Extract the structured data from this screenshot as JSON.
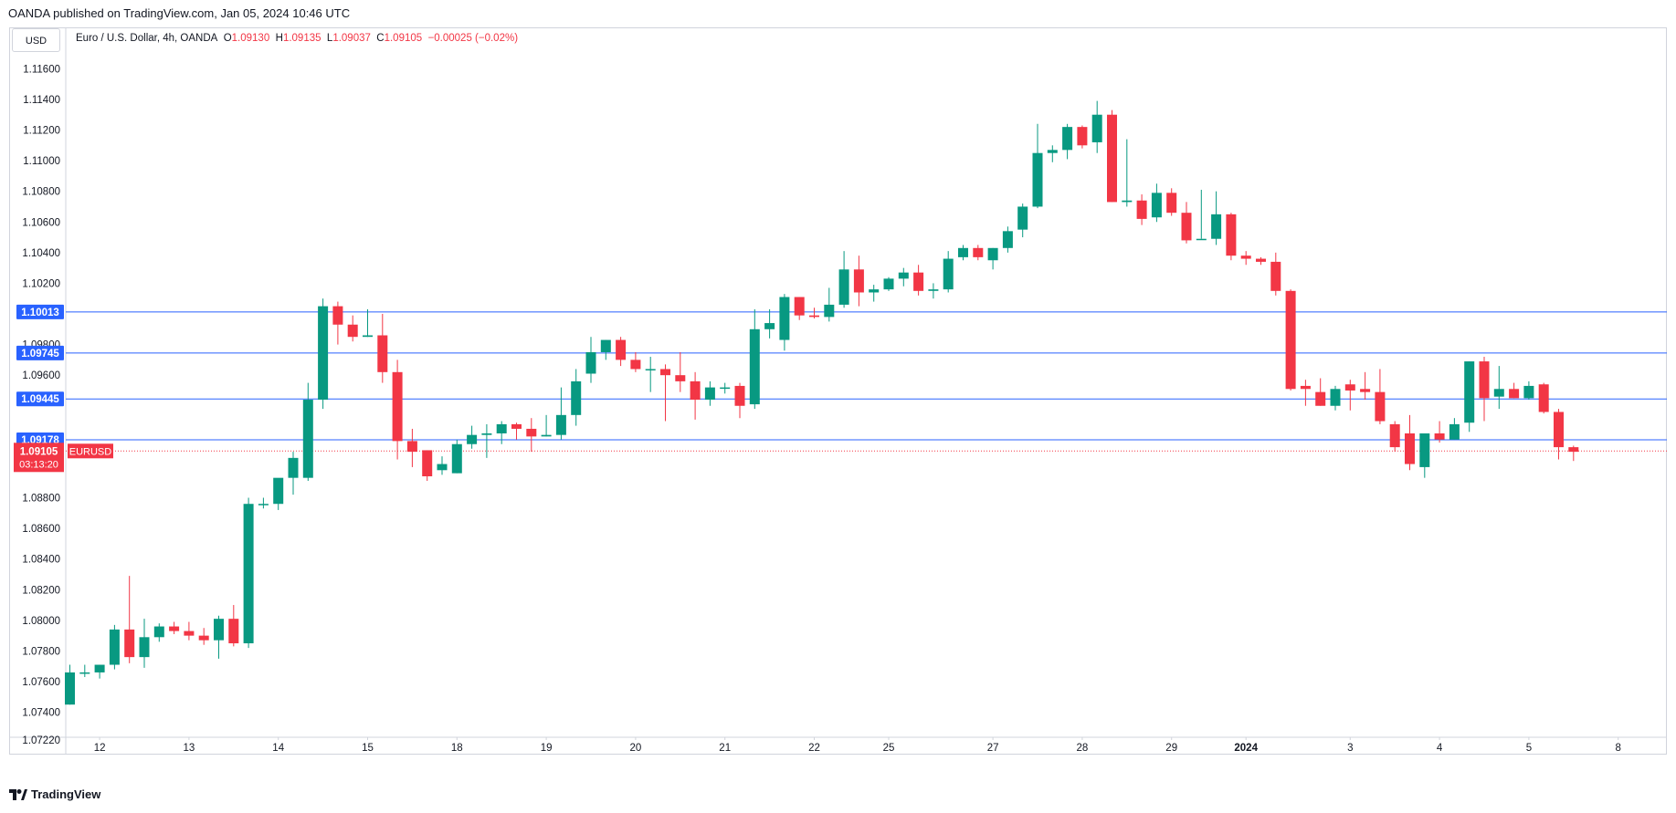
{
  "header": {
    "publisher_line": "OANDA published on TradingView.com, Jan 05, 2024 10:46 UTC"
  },
  "toolbar": {
    "currency_button": "USD"
  },
  "legend": {
    "symbol": "Euro / U.S. Dollar, 4h, OANDA",
    "o_label": "O",
    "o_value": "1.09130",
    "h_label": "H",
    "h_value": "1.09135",
    "l_label": "L",
    "l_value": "1.09037",
    "c_label": "C",
    "c_value": "1.09105",
    "change": "−0.00025 (−0.02%)"
  },
  "footer": {
    "logo_text": "TradingView"
  },
  "colors": {
    "up": "#089981",
    "down": "#f23645",
    "level_line": "#2962ff",
    "grid": "#e0e3eb"
  },
  "chart_data": {
    "type": "candlestick",
    "title": "Euro / U.S. Dollar, 4h, OANDA",
    "ylim": [
      1.0707,
      1.1187
    ],
    "y_ticks": [
      "1.11600",
      "1.11400",
      "1.11200",
      "1.11000",
      "1.10800",
      "1.10600",
      "1.10400",
      "1.10200",
      "1.09800",
      "1.09600",
      "1.08800",
      "1.08600",
      "1.08400",
      "1.08200",
      "1.08000",
      "1.07800",
      "1.07600",
      "1.07400",
      "1.07220"
    ],
    "x_labels": [
      "12",
      "13",
      "14",
      "15",
      "18",
      "19",
      "20",
      "21",
      "22",
      "25",
      "27",
      "28",
      "29",
      "2024",
      "3",
      "4",
      "5",
      "8"
    ],
    "x_label_bars": [
      2,
      8,
      14,
      20,
      26,
      32,
      38,
      44,
      50,
      55,
      62,
      68,
      74,
      79,
      86,
      92,
      98,
      104
    ],
    "bold_x_labels": [
      "2024"
    ],
    "price_levels": [
      {
        "label": "1.10013",
        "value": 1.10013
      },
      {
        "label": "1.09745",
        "value": 1.09745
      },
      {
        "label": "1.09445",
        "value": 1.09445
      },
      {
        "label": "1.09178",
        "value": 1.09178
      }
    ],
    "current_price": {
      "label": "1.09105",
      "value": 1.09105,
      "symbol": "EURUSD",
      "countdown": "03:13:20"
    },
    "total_slots": 107,
    "candles": [
      [
        1.0745,
        1.0771,
        1.0745,
        1.0766
      ],
      [
        1.0766,
        1.0771,
        1.0763,
        1.0766
      ],
      [
        1.0766,
        1.0771,
        1.0762,
        1.0771
      ],
      [
        1.0771,
        1.0797,
        1.0768,
        1.0794
      ],
      [
        1.0794,
        1.0829,
        1.0772,
        1.0776
      ],
      [
        1.0776,
        1.0801,
        1.0769,
        1.0789
      ],
      [
        1.0789,
        1.0798,
        1.0786,
        1.0796
      ],
      [
        1.0796,
        1.0799,
        1.0791,
        1.0793
      ],
      [
        1.0793,
        1.0799,
        1.0787,
        1.079
      ],
      [
        1.079,
        1.0795,
        1.0784,
        1.0787
      ],
      [
        1.0787,
        1.0803,
        1.0775,
        1.0801
      ],
      [
        1.0801,
        1.081,
        1.0783,
        1.0785
      ],
      [
        1.0785,
        1.088,
        1.0782,
        1.0876
      ],
      [
        1.0876,
        1.088,
        1.0873,
        1.0876
      ],
      [
        1.0876,
        1.0892,
        1.0872,
        1.0893
      ],
      [
        1.0893,
        1.091,
        1.0882,
        1.0906
      ],
      [
        1.0893,
        1.0955,
        1.0891,
        1.0944
      ],
      [
        1.0944,
        1.101,
        1.0938,
        1.1005
      ],
      [
        1.1005,
        1.1008,
        1.098,
        1.0993
      ],
      [
        1.0993,
        1.0999,
        1.0982,
        1.0985
      ],
      [
        1.0985,
        1.1003,
        1.0985,
        1.0986
      ],
      [
        1.0986,
        1.1,
        1.0955,
        1.0962
      ],
      [
        1.0962,
        1.097,
        1.0905,
        1.0917
      ],
      [
        1.0917,
        1.0925,
        1.09,
        1.091
      ],
      [
        1.0911,
        1.0911,
        1.0891,
        1.0894
      ],
      [
        1.0898,
        1.0907,
        1.0895,
        1.0902
      ],
      [
        1.0896,
        1.0918,
        1.0896,
        1.0915
      ],
      [
        1.0915,
        1.0927,
        1.0912,
        1.0921
      ],
      [
        1.0921,
        1.0928,
        1.0906,
        1.0922
      ],
      [
        1.0922,
        1.093,
        1.0915,
        1.0928
      ],
      [
        1.0928,
        1.0929,
        1.0918,
        1.0925
      ],
      [
        1.0925,
        1.0932,
        1.091,
        1.092
      ],
      [
        1.092,
        1.0934,
        1.092,
        1.0921
      ],
      [
        1.0921,
        1.0952,
        1.0918,
        1.0934
      ],
      [
        1.0934,
        1.0964,
        1.0927,
        1.0956
      ],
      [
        1.0961,
        1.0985,
        1.0955,
        1.0975
      ],
      [
        1.0975,
        1.0983,
        1.097,
        1.0983
      ],
      [
        1.0983,
        1.0985,
        1.0966,
        1.097
      ],
      [
        1.097,
        1.0975,
        1.0962,
        1.0964
      ],
      [
        1.0964,
        1.0972,
        1.0949,
        1.0964
      ],
      [
        1.0964,
        1.0967,
        1.093,
        1.096
      ],
      [
        1.096,
        1.0975,
        1.0949,
        1.0956
      ],
      [
        1.0956,
        1.0962,
        1.0931,
        1.0944
      ],
      [
        1.0944,
        1.0956,
        1.094,
        1.0952
      ],
      [
        1.0952,
        1.0955,
        1.0948,
        1.0952
      ],
      [
        1.0953,
        1.0955,
        1.0932,
        1.094
      ],
      [
        1.0941,
        1.1003,
        1.0938,
        1.099
      ],
      [
        1.099,
        1.1003,
        1.0984,
        1.0994
      ],
      [
        1.0983,
        1.1013,
        1.0976,
        1.1011
      ],
      [
        1.1011,
        1.1011,
        1.0996,
        1.0999
      ],
      [
        1.0999,
        1.1004,
        1.0997,
        1.0998
      ],
      [
        1.0998,
        1.1017,
        1.0995,
        1.1006
      ],
      [
        1.1006,
        1.1041,
        1.1004,
        1.1029
      ],
      [
        1.1029,
        1.1038,
        1.1005,
        1.1014
      ],
      [
        1.1014,
        1.1019,
        1.1008,
        1.1016
      ],
      [
        1.1016,
        1.1024,
        1.1015,
        1.1023
      ],
      [
        1.1023,
        1.103,
        1.1018,
        1.1027
      ],
      [
        1.1027,
        1.1032,
        1.1012,
        1.1015
      ],
      [
        1.1015,
        1.102,
        1.101,
        1.1016
      ],
      [
        1.1016,
        1.1041,
        1.1014,
        1.1036
      ],
      [
        1.1037,
        1.1045,
        1.1035,
        1.1043
      ],
      [
        1.1043,
        1.1045,
        1.1035,
        1.1037
      ],
      [
        1.1035,
        1.1043,
        1.1029,
        1.1043
      ],
      [
        1.1043,
        1.1057,
        1.104,
        1.1054
      ],
      [
        1.1055,
        1.1072,
        1.105,
        1.107
      ],
      [
        1.107,
        1.1124,
        1.1069,
        1.1105
      ],
      [
        1.1105,
        1.111,
        1.1099,
        1.1107
      ],
      [
        1.1107,
        1.1124,
        1.1101,
        1.1122
      ],
      [
        1.1122,
        1.1123,
        1.1108,
        1.111
      ],
      [
        1.1112,
        1.1139,
        1.1105,
        1.113
      ],
      [
        1.113,
        1.1133,
        1.1073,
        1.1073
      ],
      [
        1.1073,
        1.1114,
        1.107,
        1.1074
      ],
      [
        1.1074,
        1.1078,
        1.1058,
        1.1062
      ],
      [
        1.1063,
        1.1085,
        1.106,
        1.1079
      ],
      [
        1.1079,
        1.1082,
        1.1064,
        1.1066
      ],
      [
        1.1066,
        1.1073,
        1.1046,
        1.1048
      ],
      [
        1.1049,
        1.1081,
        1.1049,
        1.1049
      ],
      [
        1.1049,
        1.108,
        1.1045,
        1.1065
      ],
      [
        1.1065,
        1.1066,
        1.1035,
        1.1038
      ],
      [
        1.1038,
        1.1041,
        1.1032,
        1.1036
      ],
      [
        1.1036,
        1.1037,
        1.1032,
        1.1034
      ],
      [
        1.1034,
        1.104,
        1.1012,
        1.1015
      ],
      [
        1.1015,
        1.1016,
        1.095,
        1.0951
      ],
      [
        1.0953,
        1.0957,
        1.094,
        1.0951
      ],
      [
        1.0949,
        1.0958,
        1.094,
        1.094
      ],
      [
        1.094,
        1.0953,
        1.0937,
        1.0951
      ],
      [
        1.0954,
        1.0957,
        1.0937,
        1.095
      ],
      [
        1.0951,
        1.0962,
        1.0944,
        1.0949
      ],
      [
        1.0949,
        1.0964,
        1.0928,
        1.093
      ],
      [
        1.0928,
        1.093,
        1.091,
        1.0913
      ],
      [
        1.0922,
        1.0934,
        1.0898,
        1.0902
      ],
      [
        1.09,
        1.0922,
        1.0893,
        1.0922
      ],
      [
        1.0922,
        1.093,
        1.0916,
        1.0918
      ],
      [
        1.0918,
        1.0932,
        1.0918,
        1.0928
      ],
      [
        1.0929,
        1.0969,
        1.0923,
        1.0969
      ],
      [
        1.0969,
        1.0972,
        1.093,
        1.0945
      ],
      [
        1.0946,
        1.0966,
        1.0938,
        1.0951
      ],
      [
        1.0951,
        1.0955,
        1.0945,
        1.0945
      ],
      [
        1.0945,
        1.0956,
        1.0944,
        1.0953
      ],
      [
        1.0954,
        1.0955,
        1.0935,
        1.0936
      ],
      [
        1.0936,
        1.0938,
        1.0905,
        1.0913
      ],
      [
        1.0913,
        1.0914,
        1.0904,
        1.091
      ]
    ]
  }
}
